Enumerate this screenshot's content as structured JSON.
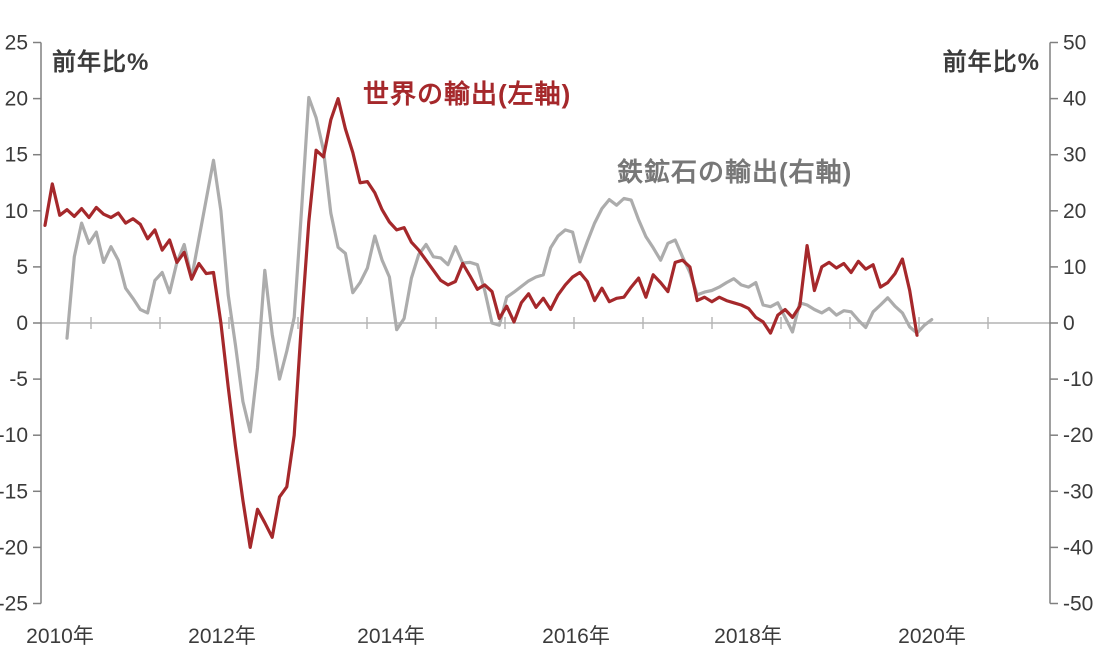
{
  "page": {
    "background": "#ffffff"
  },
  "chart_data": {
    "type": "line",
    "title": "",
    "x_axis": {
      "start": "2010-01",
      "frequency": "monthly",
      "labels": [
        "2010年",
        "2012年",
        "2014年",
        "2016年",
        "2018年",
        "2020年"
      ]
    },
    "left_axis": {
      "unit_label": "前年比%",
      "min": -25,
      "max": 25,
      "tick_interval": 5,
      "ticks": [
        25,
        20,
        15,
        10,
        5,
        0,
        -5,
        -10,
        -15,
        -20,
        -25
      ]
    },
    "right_axis": {
      "unit_label": "前年比%",
      "min": -50,
      "max": 50,
      "tick_interval": 10,
      "ticks": [
        50,
        40,
        30,
        20,
        10,
        0,
        -10,
        -20,
        -30,
        -40,
        -50
      ]
    },
    "grid": "zero-line-only",
    "legend_position": "inline-labels",
    "colors": {
      "axis": "#808080",
      "zero_line": "#b3b3b3",
      "tick_text": "#3b3b3b"
    },
    "series": [
      {
        "id": "world-exports",
        "name": "世界の輸出(左軸)",
        "axis": "left",
        "color": "#a5282b",
        "label_color": "#a5282b",
        "values": [
          8.7,
          12.4,
          9.6,
          10.1,
          9.5,
          10.2,
          9.4,
          10.3,
          9.7,
          9.4,
          9.8,
          8.9,
          9.3,
          8.8,
          7.5,
          8.3,
          6.5,
          7.4,
          5.4,
          6.3,
          3.9,
          5.3,
          4.4,
          4.5,
          0.0,
          -5.7,
          -11.0,
          -15.8,
          -20.0,
          -16.6,
          -17.8,
          -19.1,
          -15.5,
          -14.6,
          -10.0,
          0.0,
          9.0,
          15.4,
          14.8,
          18.1,
          20.0,
          17.3,
          15.2,
          12.5,
          12.6,
          11.6,
          10.1,
          9.0,
          8.3,
          8.5,
          7.2,
          6.5,
          5.6,
          4.7,
          3.8,
          3.4,
          3.7,
          5.3,
          4.2,
          3.0,
          3.4,
          2.8,
          0.4,
          1.5,
          0.1,
          1.8,
          2.6,
          1.4,
          2.2,
          1.2,
          2.5,
          3.4,
          4.1,
          4.5,
          3.7,
          2.0,
          3.1,
          1.9,
          2.2,
          2.3,
          3.2,
          4.0,
          2.3,
          4.3,
          3.6,
          2.8,
          5.4,
          5.6,
          5.0,
          2.0,
          2.3,
          1.9,
          2.3,
          2.0,
          1.8,
          1.6,
          1.3,
          0.5,
          0.1,
          -0.9,
          0.7,
          1.2,
          0.5,
          1.5,
          6.9,
          2.9,
          5.0,
          5.4,
          4.9,
          5.3,
          4.5,
          5.5,
          4.8,
          5.2,
          3.2,
          3.6,
          4.4,
          5.7,
          2.9,
          -1.1,
          null,
          null
        ]
      },
      {
        "id": "iron-ore-exports",
        "name": "鉄鉱石の輸出(右軸)",
        "axis": "right",
        "color": "#acacac",
        "label_color": "#777777",
        "values": [
          null,
          null,
          null,
          -2.7,
          11.8,
          17.8,
          14.2,
          16.2,
          10.8,
          13.6,
          11.2,
          6.2,
          4.4,
          2.4,
          1.8,
          7.6,
          9.0,
          5.4,
          10.8,
          14.0,
          8.0,
          15.0,
          22.0,
          29.0,
          20.0,
          5.0,
          -4.0,
          -14.0,
          -19.4,
          -8.0,
          9.4,
          -2.0,
          -10.0,
          -5.0,
          1.0,
          20.0,
          40.2,
          36.6,
          30.8,
          19.6,
          13.5,
          12.4,
          5.4,
          7.2,
          9.8,
          15.5,
          11.2,
          8.2,
          -1.2,
          0.8,
          8.0,
          12.2,
          14.0,
          11.8,
          11.6,
          10.4,
          13.6,
          10.7,
          10.8,
          10.4,
          5.8,
          0.0,
          -0.4,
          4.6,
          5.5,
          6.5,
          7.5,
          8.2,
          8.6,
          13.4,
          15.5,
          16.6,
          16.2,
          10.9,
          14.5,
          17.8,
          20.4,
          22.0,
          21.0,
          22.2,
          21.9,
          18.4,
          15.4,
          13.4,
          11.2,
          14.2,
          14.8,
          11.8,
          9.0,
          5.0,
          5.5,
          5.8,
          6.4,
          7.2,
          7.9,
          6.8,
          6.4,
          7.2,
          3.2,
          2.9,
          3.6,
          1.0,
          -1.6,
          3.6,
          3.2,
          2.4,
          1.8,
          2.6,
          1.4,
          2.2,
          2.0,
          0.5,
          -0.8,
          2.0,
          3.2,
          4.5,
          3.0,
          1.8,
          -0.7,
          -1.8,
          -0.4,
          0.6
        ]
      }
    ]
  }
}
